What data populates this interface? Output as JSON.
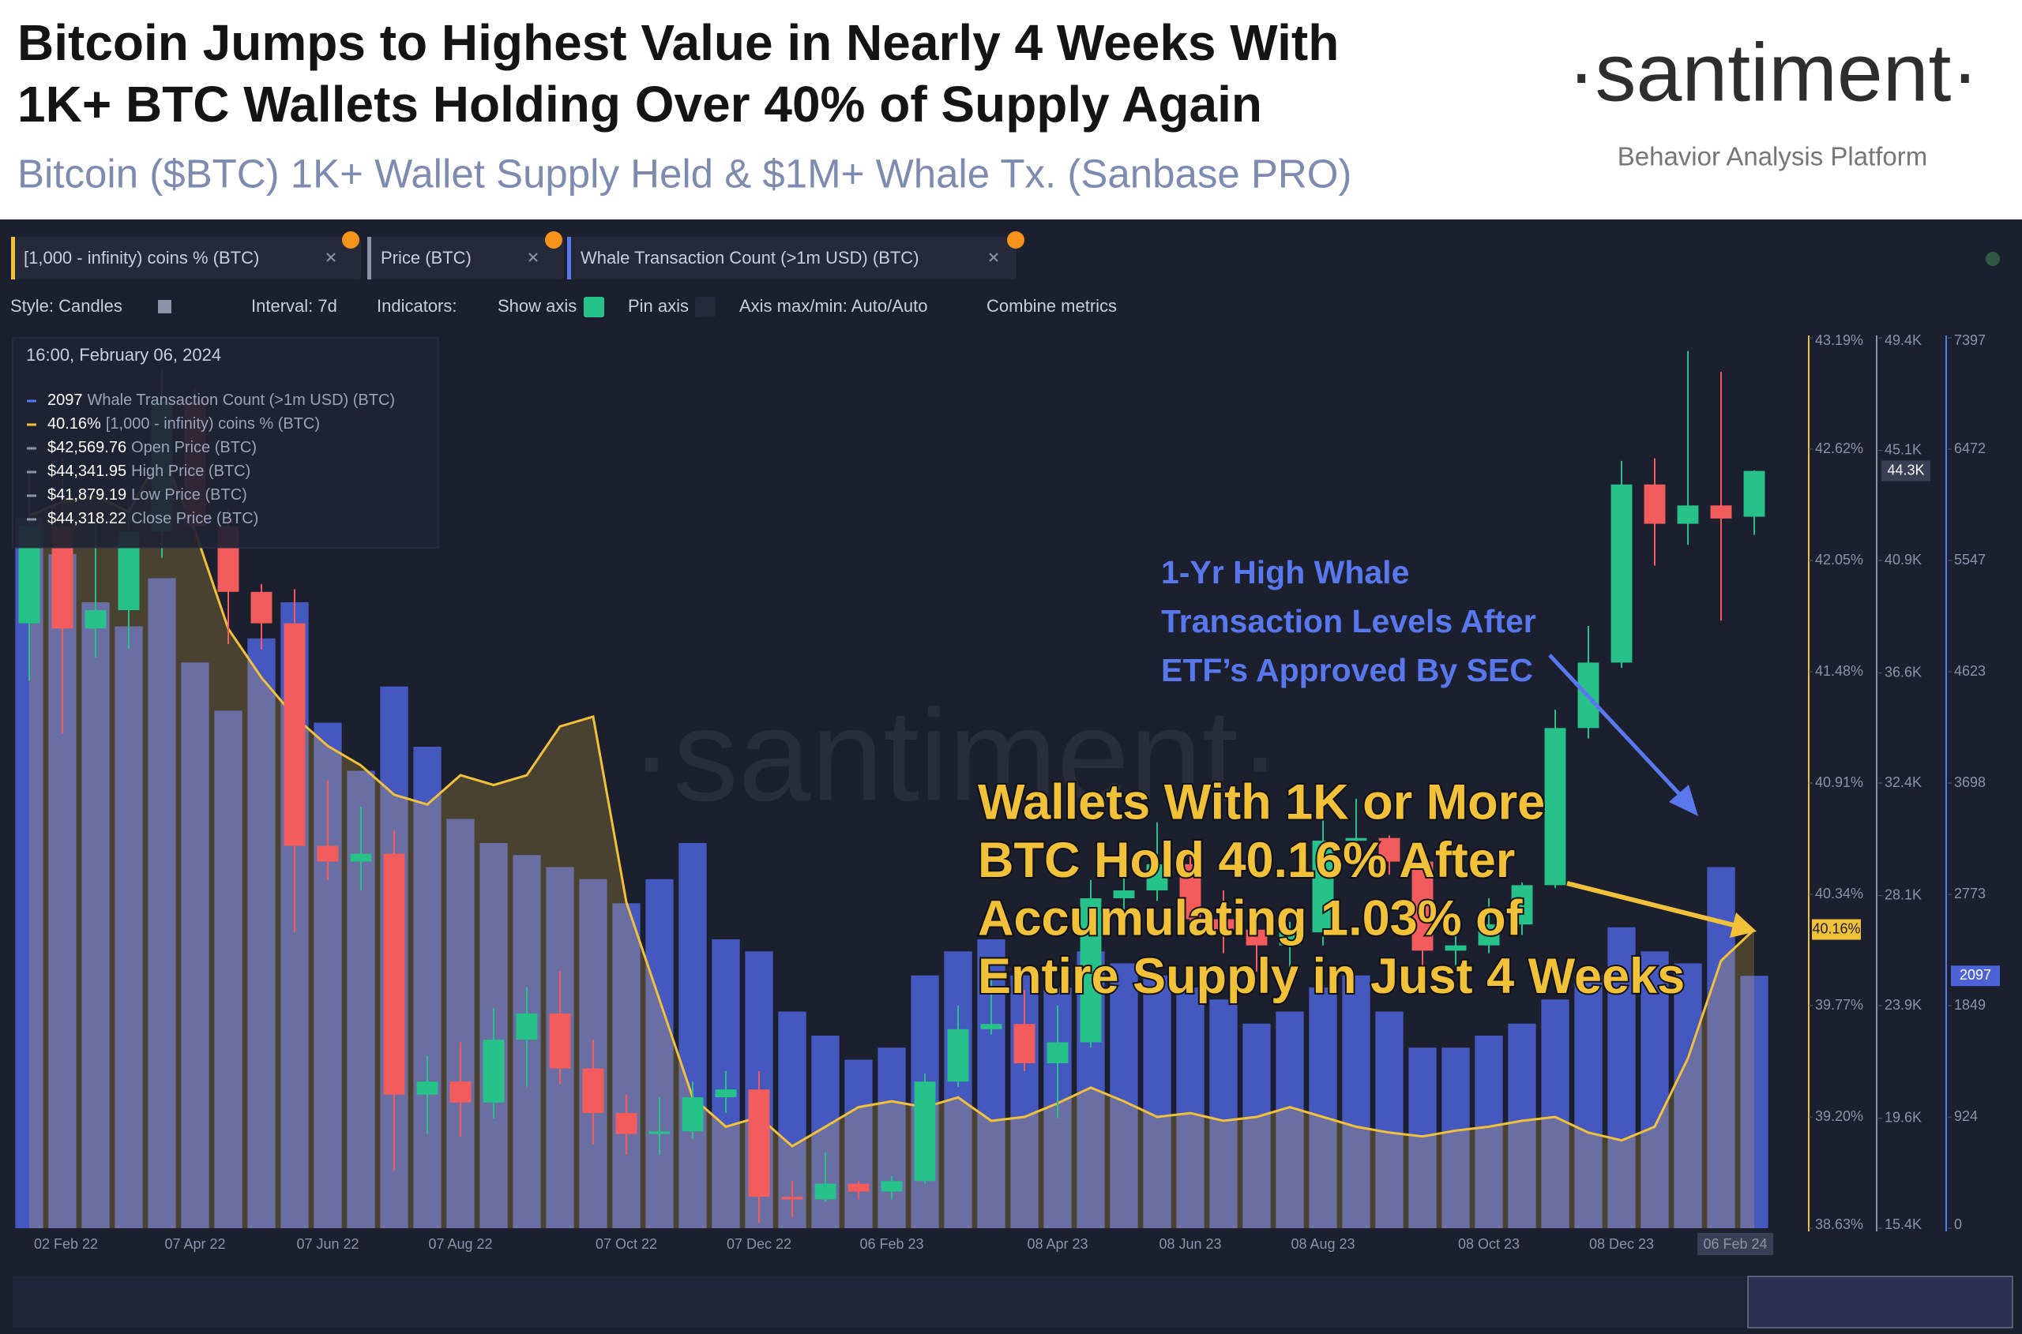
{
  "header": {
    "title_lines": [
      "Bitcoin Jumps to Highest  Value in Nearly 4 Weeks With",
      "1K+ BTC Wallets Holding Over 40% of Supply Again"
    ],
    "subtitle": "Bitcoin ($BTC) 1K+ Wallet Supply Held & $1M+ Whale Tx. (Sanbase PRO)",
    "brand": "·santiment·",
    "brand_tagline": "Behavior Analysis Platform"
  },
  "toolbar": {
    "tabs": [
      "[1,000 - infinity) coins % (BTC)",
      "Price (BTC)",
      "Whale Transaction Count (>1m USD) (BTC)"
    ],
    "controls": [
      "Style: Candles",
      "Interval: 7d",
      "Indicators:",
      "Show axis",
      "Pin axis",
      "Axis max/min: Auto/Auto",
      "Combine metrics"
    ]
  },
  "tooltip": {
    "date": "16:00, February 06, 2024",
    "rows": [
      {
        "value": "2097",
        "label": "Whale Transaction Count (>1m USD) (BTC)"
      },
      {
        "value": "40.16%",
        "label": "[1,000 - infinity) coins % (BTC)"
      },
      {
        "value": "$42,569.76",
        "label": "Open Price (BTC)"
      },
      {
        "value": "$44,341.95",
        "label": "High Price (BTC)"
      },
      {
        "value": "$41,879.19",
        "label": "Low Price (BTC)"
      },
      {
        "value": "$44,318.22",
        "label": "Close Price (BTC)"
      }
    ]
  },
  "chart_data": {
    "type": "candlestick",
    "watermark": "·santiment·",
    "categories": [
      "02 Feb 22",
      null,
      null,
      null,
      null,
      "07 Apr 22",
      null,
      null,
      null,
      "07 Jun 22",
      null,
      null,
      null,
      "07 Aug 22",
      null,
      null,
      null,
      null,
      "07 Oct 22",
      null,
      null,
      null,
      "07 Dec 22",
      null,
      null,
      null,
      "06 Feb 23",
      null,
      null,
      null,
      null,
      "08 Apr 23",
      null,
      null,
      null,
      "08 Jun 23",
      null,
      null,
      null,
      "08 Aug 23",
      null,
      null,
      null,
      null,
      "08 Oct 23",
      null,
      null,
      null,
      "08 Dec 23",
      null,
      null,
      null,
      "06 Feb 24"
    ],
    "name": "Price (BTC)",
    "up_color": "#26c28a",
    "down_color": "#f25c5c",
    "open": [
      38500,
      42200,
      38300,
      39000,
      42000,
      47000,
      42200,
      39700,
      38500,
      30000,
      29400,
      29700,
      20500,
      21000,
      20200,
      22600,
      23600,
      21500,
      19800,
      19000,
      19100,
      20400,
      20700,
      16600,
      16500,
      17100,
      16800,
      17200,
      21000,
      23000,
      23200,
      21700,
      22500,
      28000,
      28300,
      29300,
      27200,
      26800,
      26200,
      26700,
      30200,
      30300,
      29400,
      26000,
      26200,
      27000,
      28500,
      34500,
      37000,
      43800,
      42300,
      43000,
      42569.76
    ],
    "high": [
      44500,
      44800,
      42500,
      43000,
      48200,
      47500,
      42900,
      40000,
      39800,
      32500,
      31500,
      30600,
      22000,
      22500,
      23800,
      24600,
      25200,
      22600,
      20500,
      20400,
      21000,
      21400,
      21400,
      17200,
      18300,
      17200,
      17400,
      21300,
      23900,
      25200,
      24500,
      23900,
      28700,
      29200,
      30900,
      29800,
      28300,
      27400,
      27100,
      31400,
      31800,
      30400,
      29600,
      26800,
      28000,
      28600,
      35200,
      38400,
      44700,
      44800,
      48900,
      48100,
      44341.95
    ],
    "low": [
      36300,
      34300,
      37200,
      37500,
      41000,
      41500,
      37700,
      37500,
      26700,
      28700,
      28300,
      17600,
      19000,
      18900,
      19600,
      20800,
      20900,
      18600,
      18200,
      18200,
      18800,
      19800,
      15600,
      15800,
      16400,
      16500,
      16500,
      17100,
      20800,
      22800,
      21400,
      19600,
      22300,
      26600,
      27900,
      26900,
      25900,
      25200,
      24800,
      26200,
      29900,
      28900,
      25200,
      25400,
      25900,
      26600,
      28400,
      34100,
      36800,
      40700,
      41500,
      38600,
      41879.19
    ],
    "close": [
      42200,
      38300,
      39000,
      42000,
      47000,
      42200,
      39700,
      38500,
      30000,
      29400,
      29700,
      20500,
      21000,
      20200,
      22600,
      23600,
      21500,
      19800,
      19000,
      19100,
      20400,
      20700,
      16600,
      16500,
      17100,
      16800,
      17200,
      21000,
      23000,
      23200,
      21700,
      22500,
      28000,
      28300,
      29300,
      27200,
      26800,
      26200,
      26700,
      30200,
      30300,
      29400,
      26000,
      26200,
      27000,
      28500,
      34500,
      37000,
      43800,
      42300,
      43000,
      42500,
      44318.22
    ],
    "last_label": "44.3K",
    "ylim": [
      15400,
      49400
    ],
    "yticks": [
      {
        "value": 15400,
        "label": "15.4K"
      },
      {
        "value": 19600,
        "label": "19.6K"
      },
      {
        "value": 23900,
        "label": "23.9K"
      },
      {
        "value": 28100,
        "label": "28.1K"
      },
      {
        "value": 32400,
        "label": "32.4K"
      },
      {
        "value": 36600,
        "label": "36.6K"
      },
      {
        "value": 40900,
        "label": "40.9K"
      },
      {
        "value": 45100,
        "label": "45.1K"
      },
      {
        "value": 49400,
        "label": "49.4K"
      }
    ],
    "y2lim": [
      38.63,
      43.19
    ],
    "y2ticks": [
      {
        "value": 38.63,
        "label": "38.63%"
      },
      {
        "value": 39.2,
        "label": "39.20%"
      },
      {
        "value": 39.77,
        "label": "39.77%"
      },
      {
        "value": 40.34,
        "label": "40.34%"
      },
      {
        "value": 40.91,
        "label": "40.91%"
      },
      {
        "value": 41.48,
        "label": "41.48%"
      },
      {
        "value": 42.05,
        "label": "42.05%"
      },
      {
        "value": 42.62,
        "label": "42.62%"
      },
      {
        "value": 43.19,
        "label": "43.19%"
      }
    ],
    "y3lim": [
      0,
      7397
    ],
    "y3ticks": [
      0,
      924,
      1849,
      2773,
      3698,
      4623,
      5547,
      6472,
      7397
    ],
    "series": [
      {
        "name": "Whale Transaction Count (>1m USD) (BTC)",
        "type": "bar",
        "axis": "y3",
        "color": "#4c63d8",
        "last_label": "2097",
        "values": [
          5900,
          5600,
          5200,
          5000,
          5400,
          4700,
          4300,
          4900,
          5200,
          4200,
          3800,
          4500,
          4000,
          3400,
          3200,
          3100,
          3000,
          2900,
          2700,
          2900,
          3200,
          2400,
          2300,
          1800,
          1600,
          1400,
          1500,
          2100,
          2300,
          2400,
          2100,
          2000,
          2300,
          2200,
          2100,
          2000,
          1900,
          1700,
          1800,
          2000,
          2100,
          1800,
          1500,
          1500,
          1600,
          1700,
          1900,
          2100,
          2500,
          2300,
          2200,
          3000,
          2097
        ]
      },
      {
        "name": "[1,000 - infinity) coins % (BTC)",
        "type": "line",
        "axis": "y2",
        "color": "#f2c13a",
        "last_label": "40.16%",
        "values": [
          42.28,
          42.35,
          42.38,
          42.3,
          42.6,
          42.2,
          41.7,
          41.45,
          41.25,
          41.1,
          41.0,
          40.85,
          40.8,
          40.95,
          40.9,
          40.95,
          41.2,
          41.25,
          40.3,
          39.8,
          39.3,
          39.15,
          39.2,
          39.05,
          39.15,
          39.25,
          39.28,
          39.25,
          39.3,
          39.18,
          39.2,
          39.27,
          39.35,
          39.28,
          39.2,
          39.22,
          39.18,
          39.2,
          39.25,
          39.2,
          39.15,
          39.12,
          39.1,
          39.13,
          39.15,
          39.18,
          39.2,
          39.12,
          39.08,
          39.15,
          39.5,
          40.0,
          40.16
        ]
      }
    ],
    "annotations": [
      {
        "lines": [
          "1-Yr High Whale",
          "Transaction Levels After",
          "ETF’s Approved By SEC"
        ],
        "color": "#5a78ee"
      },
      {
        "lines": [
          "Wallets With 1K or More",
          "BTC Hold 40.16% After",
          "Accumulating 1.03% of",
          "Entire Supply in Just 4 Weeks"
        ],
        "color": "#f2c13a"
      }
    ]
  }
}
